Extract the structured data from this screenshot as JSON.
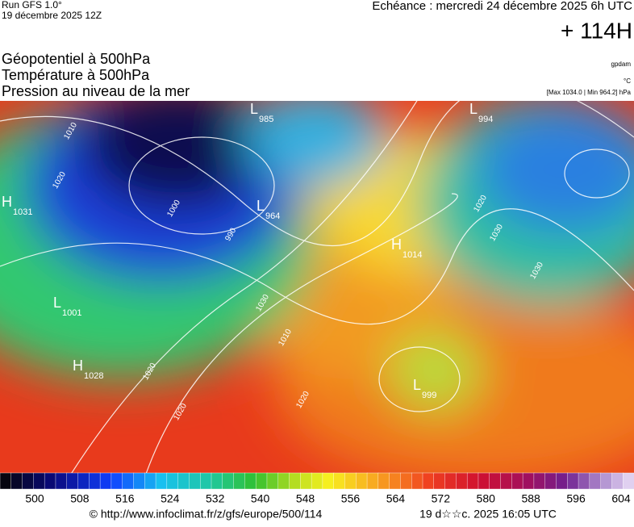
{
  "header": {
    "run": "Run GFS 1.0°",
    "date": "19 décembre 2025 12Z",
    "echeance": "Echéance : mercredi 24 décembre 2025 6h UTC",
    "lead": "+ 114H"
  },
  "titles": [
    "Géopotentiel à 500hPa",
    "Température à 500hPa",
    "Pression au niveau de la mer"
  ],
  "units": {
    "geo": "gpdam",
    "temp": "°C",
    "pressure": "[Max 1034.0 | Min 964.2] hPa"
  },
  "centers": [
    {
      "letter": "L",
      "value": 985
    },
    {
      "letter": "L",
      "value": 994
    },
    {
      "letter": "H",
      "value": 1031
    },
    {
      "letter": "L",
      "value": 964
    },
    {
      "letter": "H",
      "value": 1014
    },
    {
      "letter": "L",
      "value": 1001
    },
    {
      "letter": "H",
      "value": 1028
    },
    {
      "letter": "L",
      "value": 999
    }
  ],
  "isobar_labels": [
    1010,
    1000,
    990,
    1020,
    1030,
    1010,
    1020,
    1030,
    1020,
    1020,
    1030,
    1020
  ],
  "colorbar": {
    "ticks": [
      500,
      508,
      516,
      524,
      532,
      540,
      548,
      556,
      564,
      572,
      580,
      588,
      596,
      604
    ]
  },
  "footer": {
    "url": "© http://www.infoclimat.fr/z/gfs/europe/500/114",
    "stamp": "19 d☆☆c. 2025 16:05 UTC"
  }
}
